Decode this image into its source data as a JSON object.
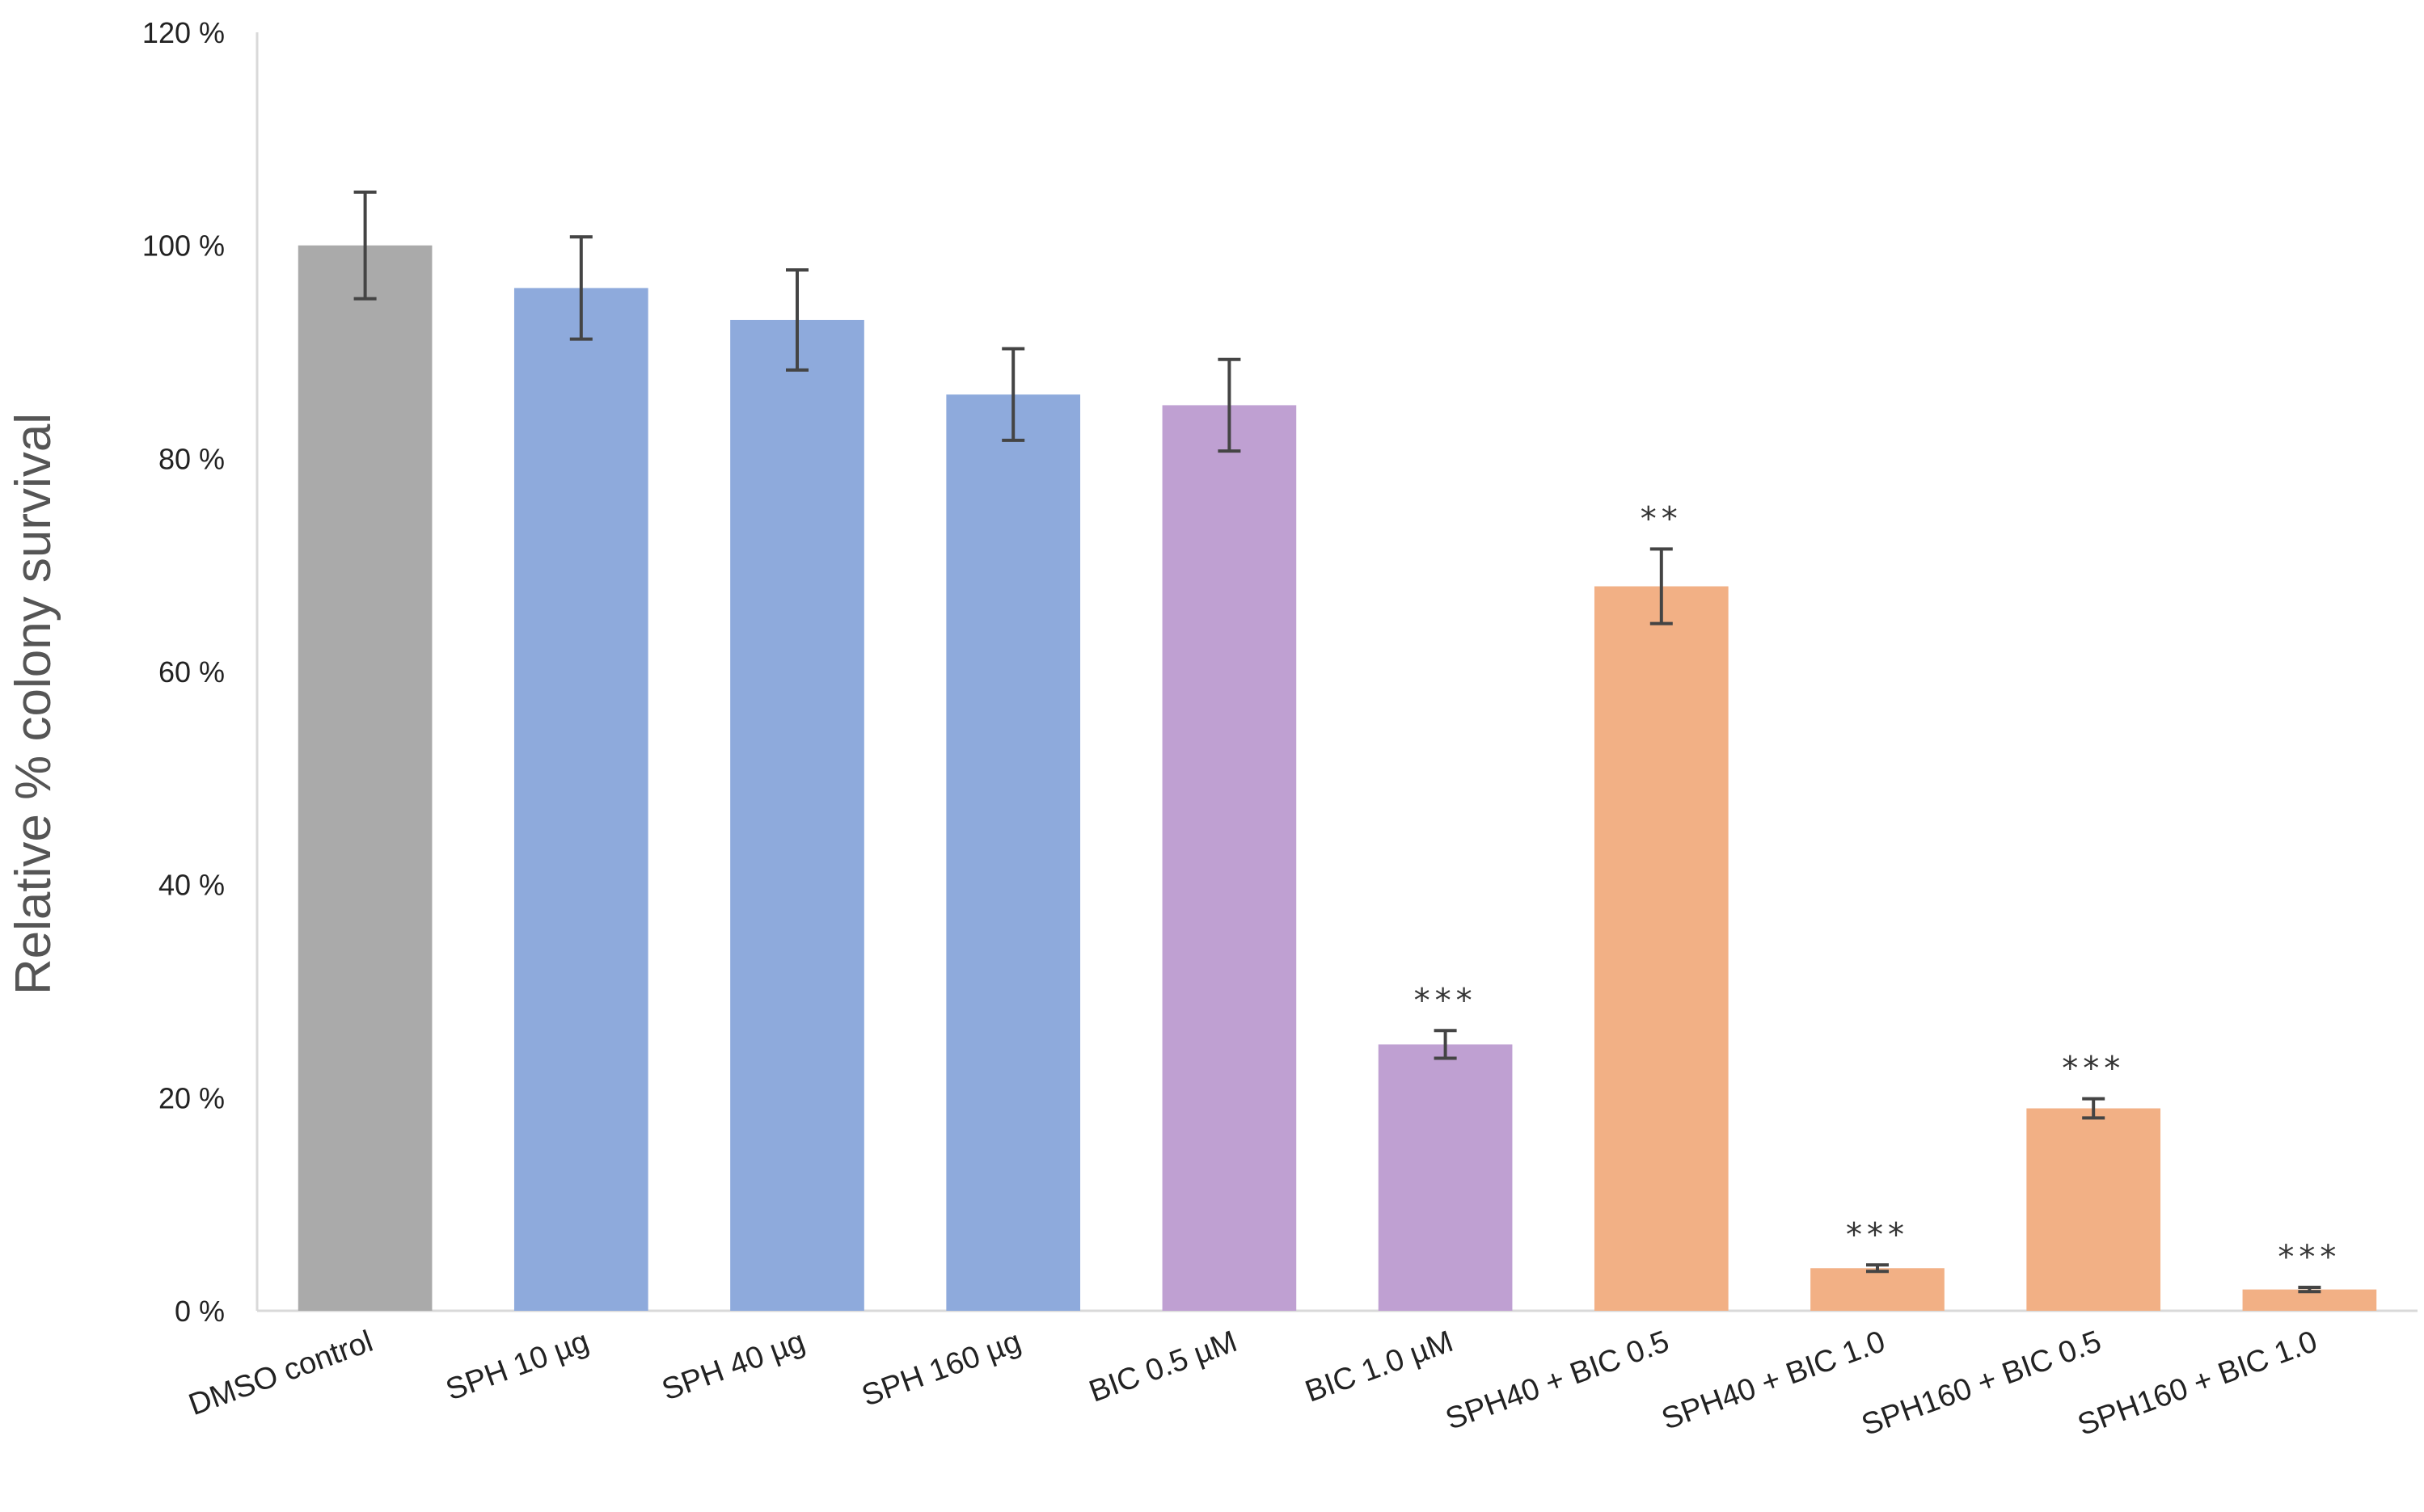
{
  "chart_data": {
    "type": "bar",
    "title": "",
    "xlabel": "",
    "ylabel": "Relative % colony survival",
    "ylim": [
      0,
      120
    ],
    "yticks": [
      0,
      20,
      40,
      60,
      80,
      100,
      120
    ],
    "ytick_labels": [
      "0 %",
      "20 %",
      "40 %",
      "60 %",
      "80 %",
      "100 %",
      "120 %"
    ],
    "grid": false,
    "legend": "none",
    "categories": [
      "DMSO control",
      "SPH 10 µg",
      "SPH 40 µg",
      "SPH 160 µg",
      "BIC 0.5 µM",
      "BIC 1.0 µM",
      "SPH40 + BIC 0.5",
      "SPH40 + BIC 1.0",
      "SPH160 + BIC 0.5",
      "SPH160 + BIC 1.0"
    ],
    "values": [
      100,
      96,
      93,
      86,
      85,
      25,
      68,
      4,
      19,
      2
    ],
    "error": [
      5,
      4.8,
      4.7,
      4.3,
      4.3,
      1.3,
      3.5,
      0.3,
      0.9,
      0.2
    ],
    "colors": [
      "#aaaaaa",
      "#8eaadc",
      "#8eaadc",
      "#8eaadc",
      "#bfa0d2",
      "#bfa0d2",
      "#f2b085",
      "#f2b085",
      "#f2b085",
      "#f2b085"
    ],
    "significance": [
      "",
      "",
      "",
      "",
      "",
      "***",
      "**",
      "***",
      "***",
      "***"
    ]
  }
}
